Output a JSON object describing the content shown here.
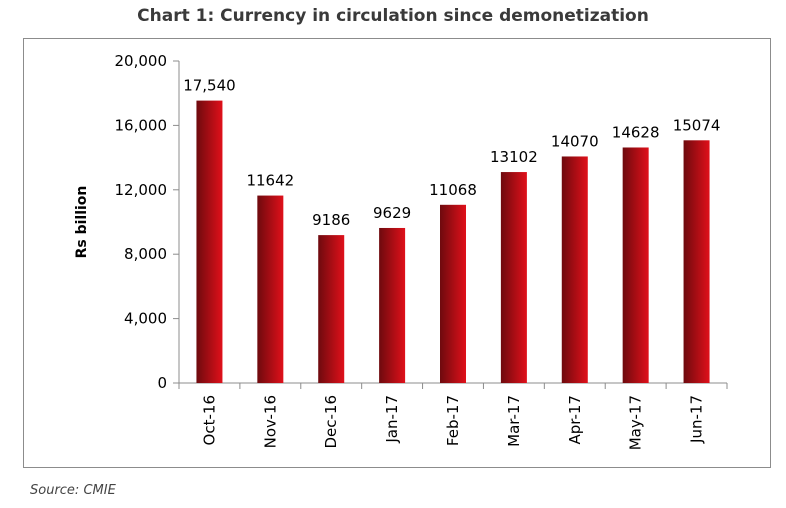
{
  "chart_data": {
    "type": "bar",
    "title": "Chart 1: Currency in circulation since demonetization",
    "xlabel": "",
    "ylabel": "Rs billion",
    "categories": [
      "Oct-16",
      "Nov-16",
      "Dec-16",
      "Jan-17",
      "Feb-17",
      "Mar-17",
      "Apr-17",
      "May-17",
      "Jun-17"
    ],
    "values": [
      17540,
      11642,
      9186,
      9629,
      11068,
      13102,
      14070,
      14628,
      15074
    ],
    "data_labels": [
      "17,540",
      "11642",
      "9186",
      "9629",
      "11068",
      "13102",
      "14070",
      "14628",
      "15074"
    ],
    "ylim": [
      0,
      20000
    ],
    "yticks": [
      0,
      4000,
      8000,
      12000,
      16000,
      20000
    ],
    "ytick_labels": [
      "0",
      "4,000",
      "8,000",
      "12,000",
      "16,000",
      "20,000"
    ],
    "grid": false,
    "legend": "none",
    "bar_color_light": "#e0101a",
    "bar_color_dark": "#6e0a0e"
  },
  "source": "Source: CMIE"
}
